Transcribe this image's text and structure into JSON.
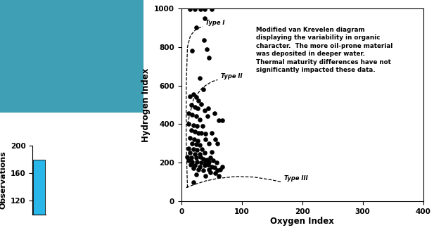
{
  "chart_data": [
    {
      "type": "bar",
      "categories": [
        null
      ],
      "values": [
        180
      ],
      "color": "#29b6e8",
      "y_label": "Observations",
      "ylim": [
        100,
        200
      ],
      "yticks": [
        120,
        160,
        200
      ],
      "tick_labels": "y"
    },
    {
      "type": "scatter",
      "x_label": "Oxygen Index",
      "y_label": "Hydrogen Index",
      "annotation": "Modified van Krevelen diagram\ndisplaying the variability in organic\ncharacter.  The more oil-prone material\nwas deposited in deeper water.\nThermal maturity differences have not\nsignificantly impacted these data.",
      "xlim": [
        0,
        400
      ],
      "xticks": [
        0,
        100,
        200,
        300,
        400
      ],
      "ylim": [
        0,
        1000
      ],
      "yticks": [
        0,
        200,
        400,
        600,
        800,
        1000
      ],
      "color": "#000000",
      "marker": "o",
      "x": [
        14,
        22,
        31,
        38,
        50,
        39,
        25,
        37,
        18,
        42,
        46,
        30,
        36,
        14,
        20,
        24,
        28,
        16,
        22,
        27,
        33,
        38,
        44,
        12,
        18,
        25,
        30,
        43,
        55,
        62,
        68,
        12,
        20,
        26,
        35,
        16,
        22,
        28,
        33,
        40,
        50,
        14,
        21,
        27,
        40,
        56,
        18,
        25,
        30,
        45,
        60,
        12,
        20,
        26,
        34,
        14,
        22,
        30,
        38,
        50,
        10,
        16,
        24,
        31,
        36,
        42,
        48,
        12,
        18,
        26,
        33,
        40,
        46,
        52,
        58,
        15,
        22,
        30,
        38,
        44,
        50,
        20,
        28,
        36,
        45,
        55,
        60,
        64,
        68,
        48,
        56,
        25,
        40,
        62,
        20
      ],
      "values": [
        995,
        995,
        995,
        995,
        995,
        950,
        900,
        835,
        780,
        790,
        745,
        640,
        580,
        545,
        555,
        540,
        520,
        500,
        490,
        480,
        505,
        470,
        480,
        455,
        450,
        440,
        425,
        440,
        455,
        420,
        420,
        400,
        395,
        390,
        390,
        370,
        360,
        355,
        355,
        350,
        355,
        330,
        320,
        315,
        320,
        320,
        300,
        295,
        290,
        300,
        300,
        275,
        270,
        265,
        270,
        250,
        245,
        245,
        250,
        255,
        230,
        225,
        225,
        230,
        220,
        215,
        225,
        210,
        205,
        205,
        200,
        200,
        205,
        210,
        200,
        190,
        185,
        180,
        185,
        190,
        180,
        170,
        165,
        160,
        165,
        175,
        160,
        165,
        180,
        150,
        145,
        140,
        130,
        130,
        100
      ],
      "series": [
        {
          "name": "Type I",
          "type": "line",
          "line_style": "dashed",
          "color": "#000000",
          "x": [
            10,
            8,
            8,
            10,
            15,
            25,
            35
          ],
          "values": [
            70,
            300,
            600,
            800,
            860,
            895,
            905
          ]
        },
        {
          "name": "Type II",
          "type": "line",
          "line_style": "dashed",
          "color": "#000000",
          "x": [
            10,
            20,
            35,
            50,
            60
          ],
          "values": [
            400,
            530,
            590,
            620,
            630
          ]
        },
        {
          "name": "Type III",
          "type": "line",
          "line_style": "dashed",
          "color": "#000000",
          "x": [
            8,
            20,
            40,
            60,
            90,
            120,
            150,
            165
          ],
          "values": [
            70,
            85,
            105,
            118,
            128,
            125,
            110,
            100
          ]
        }
      ]
    }
  ]
}
